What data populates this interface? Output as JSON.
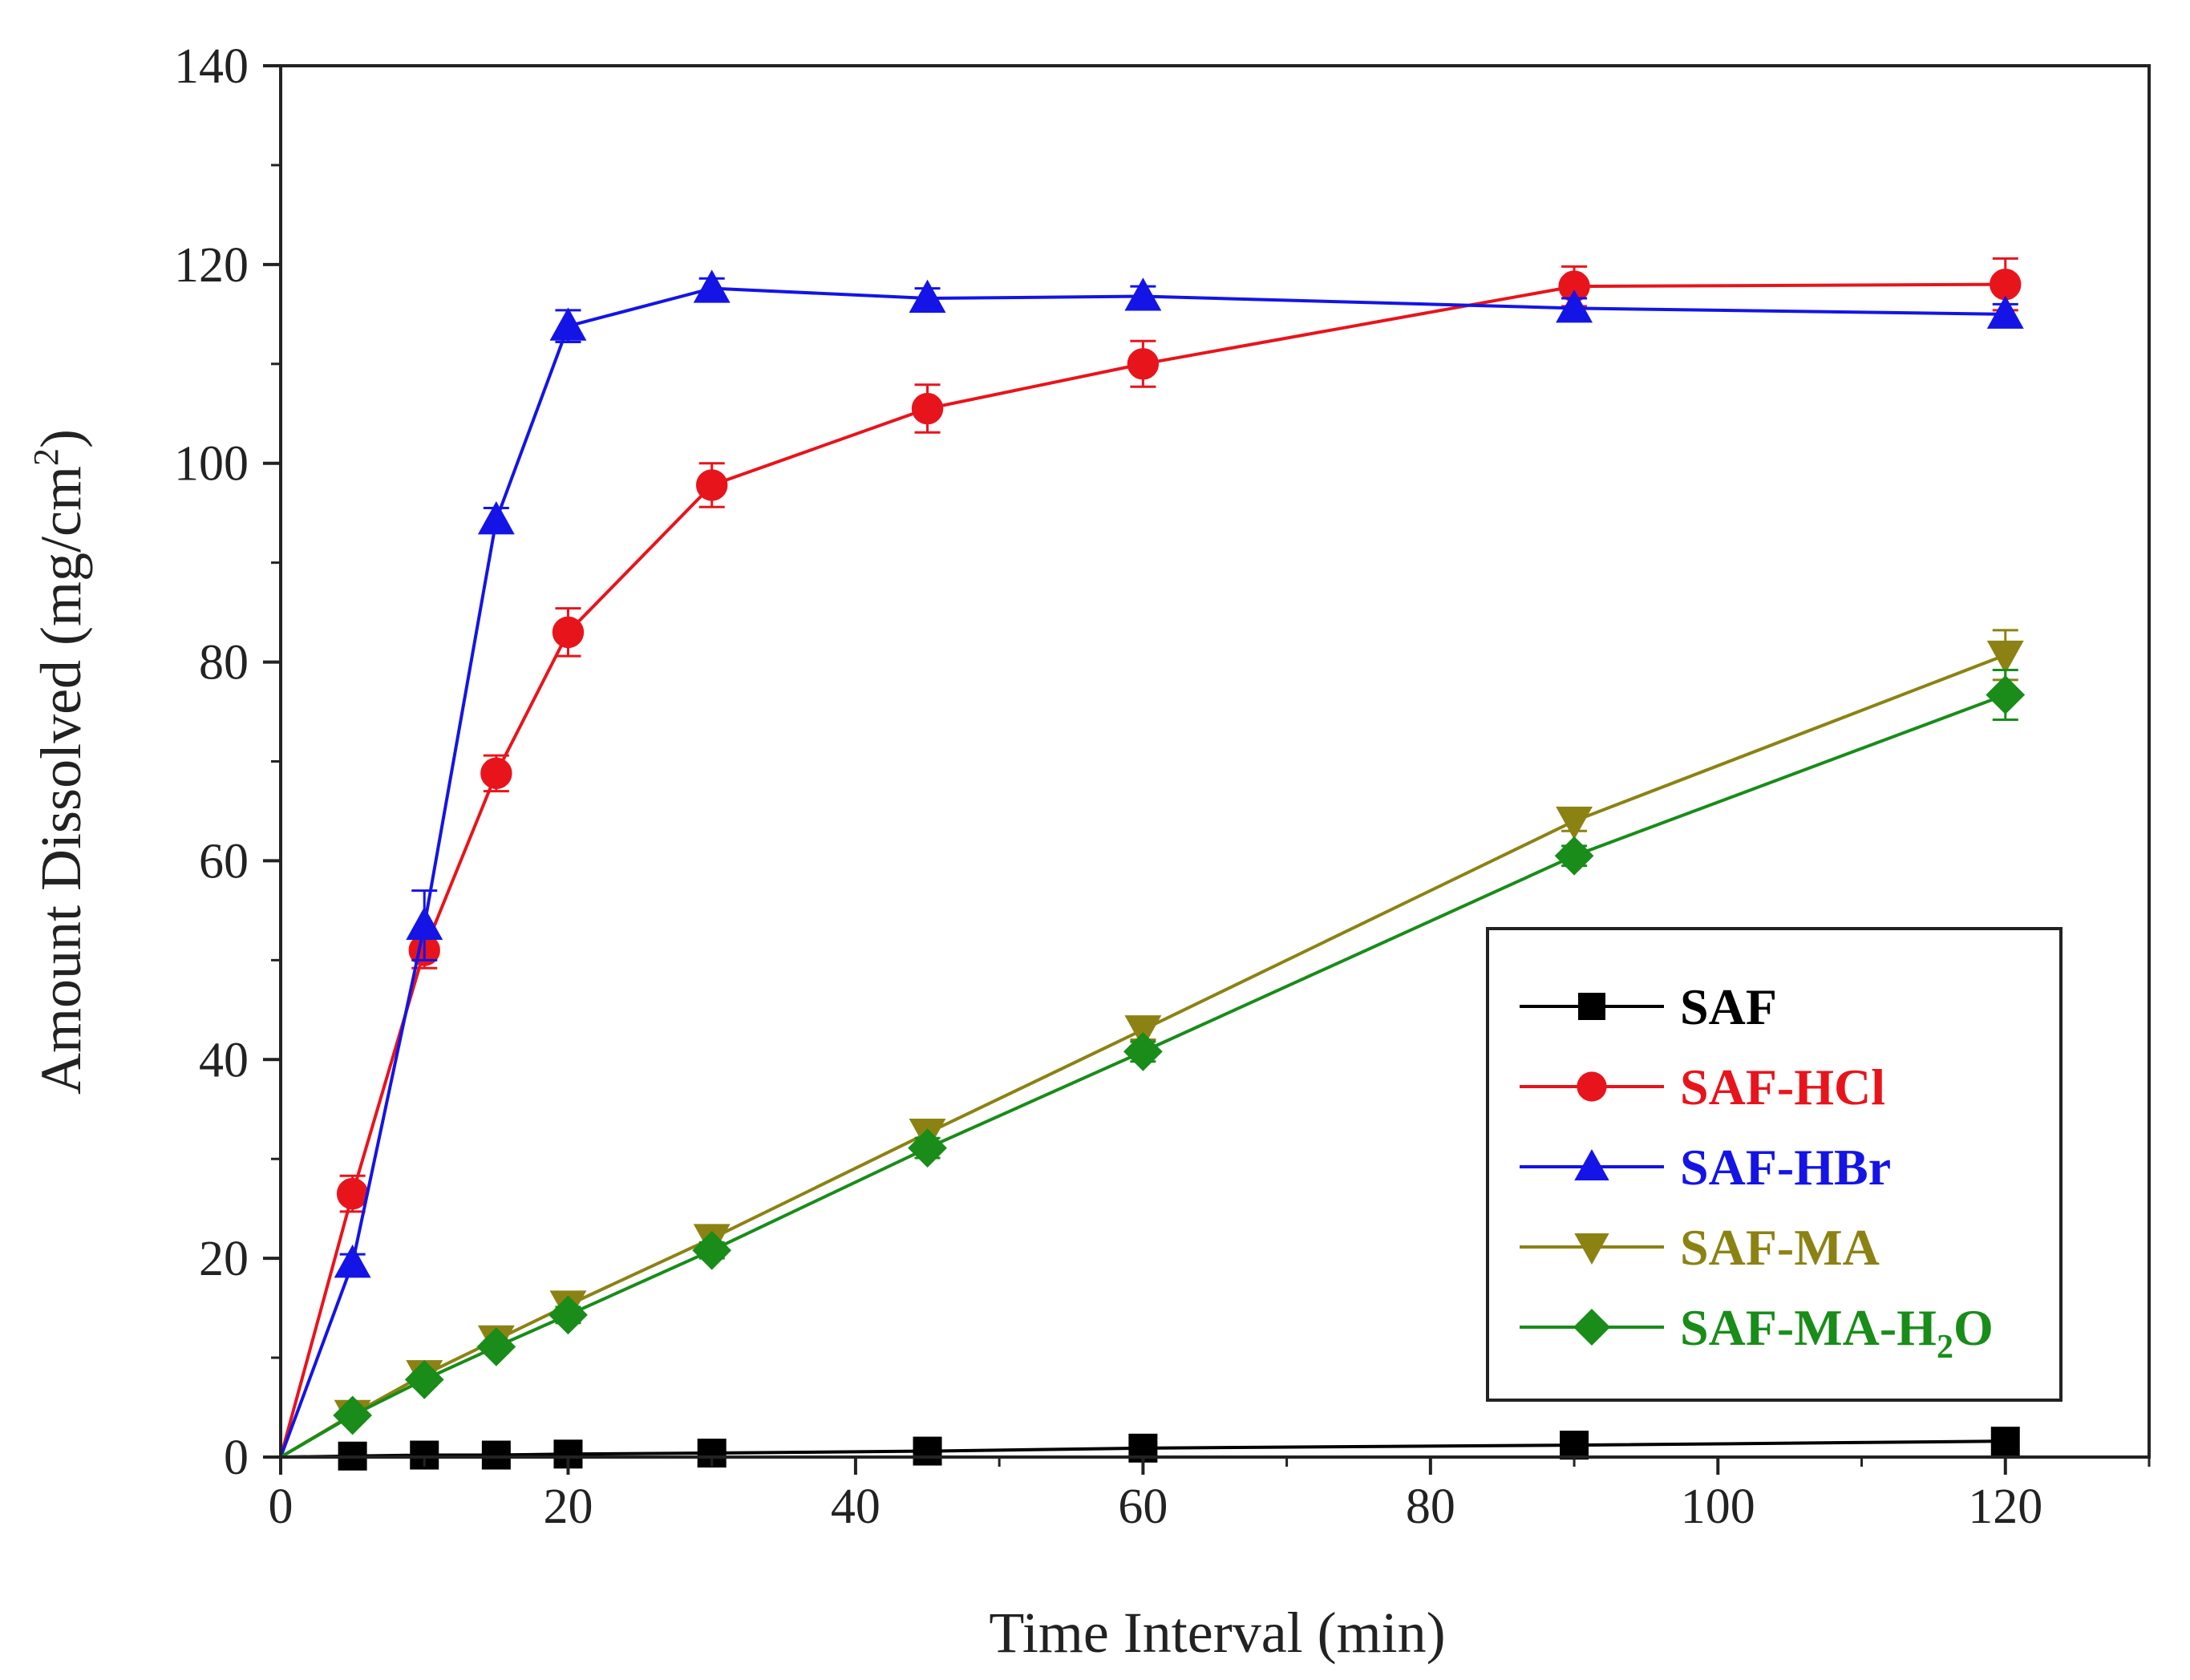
{
  "chart_data": {
    "type": "line",
    "xlabel": "Time Interval (min)",
    "ylabel": "Amount Dissolved (mg/cm",
    "ylabel_superscript": "2",
    "ylabel_close": ")",
    "xlim": [
      0,
      130
    ],
    "ylim": [
      0,
      140
    ],
    "xticks": [
      "0",
      "20",
      "40",
      "60",
      "80",
      "100",
      "120"
    ],
    "yticks": [
      "0",
      "20",
      "40",
      "60",
      "80",
      "100",
      "120",
      "140"
    ],
    "legend_position": "center-right",
    "series": [
      {
        "name": "SAF",
        "name_sub": "",
        "name_tail": "",
        "color": "#000000",
        "marker": "square",
        "x": [
          0,
          5,
          10,
          15,
          20,
          30,
          45,
          60,
          90,
          120
        ],
        "y": [
          0,
          0.1,
          0.2,
          0.2,
          0.3,
          0.4,
          0.6,
          0.9,
          1.2,
          1.6
        ],
        "err": [
          0,
          0.2,
          0.2,
          0.2,
          0.2,
          0.3,
          0.3,
          0.4,
          0.5,
          0.6
        ]
      },
      {
        "name": "SAF-HCl",
        "name_sub": "",
        "name_tail": "",
        "color": "#e8141c",
        "marker": "circle",
        "x": [
          0,
          5,
          10,
          15,
          20,
          30,
          45,
          60,
          90,
          120
        ],
        "y": [
          0,
          26.5,
          51,
          68.8,
          83,
          97.8,
          105.5,
          110,
          117.8,
          118
        ],
        "err": [
          0,
          1.8,
          1.8,
          1.8,
          2.4,
          2.2,
          2.4,
          2.3,
          2.0,
          2.6
        ]
      },
      {
        "name": "SAF-HBr",
        "name_sub": "",
        "name_tail": "",
        "color": "#1414e6",
        "marker": "triangle-up",
        "x": [
          0,
          5,
          10,
          15,
          20,
          30,
          45,
          60,
          90,
          120
        ],
        "y": [
          0,
          19.5,
          53.5,
          94.3,
          113.8,
          117.6,
          116.6,
          116.8,
          115.6,
          115
        ],
        "err": [
          0,
          0.9,
          3.5,
          1.2,
          1.6,
          1.0,
          1.0,
          1.0,
          1.0,
          1.0
        ]
      },
      {
        "name": "SAF-MA",
        "name_sub": "",
        "name_tail": "",
        "color": "#8c8214",
        "marker": "triangle-down",
        "x": [
          0,
          5,
          10,
          15,
          20,
          30,
          45,
          60,
          90,
          120
        ],
        "y": [
          0,
          4.3,
          8.3,
          11.8,
          15.3,
          22,
          32.6,
          43,
          64,
          80.7
        ],
        "err": [
          0,
          0.6,
          0.6,
          0.6,
          0.8,
          0.8,
          1.0,
          1.0,
          1.0,
          2.5
        ]
      },
      {
        "name": "SAF-MA-H",
        "name_sub": "2",
        "name_tail": "O",
        "color": "#198c19",
        "marker": "diamond",
        "x": [
          0,
          5,
          10,
          15,
          20,
          30,
          45,
          60,
          90,
          120
        ],
        "y": [
          0,
          4.2,
          7.8,
          11.1,
          14.3,
          20.8,
          31.1,
          40.8,
          60.5,
          76.7
        ],
        "err": [
          0,
          0.6,
          0.6,
          0.6,
          0.8,
          0.8,
          1.0,
          1.0,
          1.0,
          2.5
        ]
      }
    ]
  }
}
